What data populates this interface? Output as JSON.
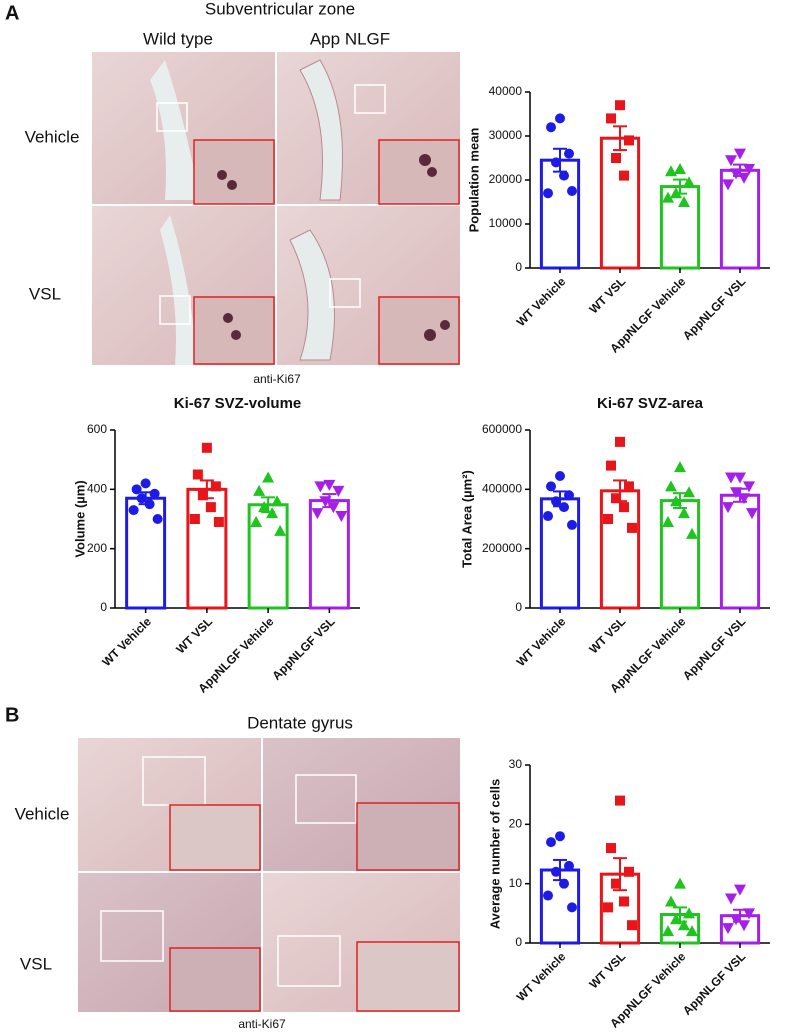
{
  "figure": {
    "panel_a": "A",
    "svz_title": "Subventricular zone",
    "col_wt": "Wild type",
    "col_app": "App NLGF",
    "row_vehicle_a": "Vehicle",
    "row_vsl_a": "VSL",
    "caption_a": "anti-Ki67",
    "panel_b": "B",
    "dg_title": "Dentate gyrus",
    "row_vehicle_b": "Vehicle",
    "row_vsl_b": "VSL",
    "caption_b": "anti-Ki67"
  },
  "chart_data": [
    {
      "type": "bar",
      "ylabel": "Population mean",
      "categories": [
        "WT Vehicle",
        "WT VSL",
        "AppNLGF Vehicle",
        "AppNLGF VSL"
      ],
      "colors": [
        "#1c1ce6",
        "#e8151b",
        "#1fc41f",
        "#a51fe8"
      ],
      "markers": [
        "circle",
        "square",
        "triangle-up",
        "triangle-down"
      ],
      "values": [
        24500,
        29500,
        18500,
        22200
      ],
      "errors": [
        2600,
        2700,
        1600,
        1300
      ],
      "points": [
        [
          34000,
          32000,
          26000,
          24000,
          21000,
          17000,
          17500
        ],
        [
          37000,
          34000,
          29000,
          25000,
          21000
        ],
        [
          22500,
          22000,
          19500,
          17000,
          15000,
          16000
        ],
        [
          26000,
          24500,
          22500,
          21500,
          20500,
          19000
        ]
      ],
      "ylim": [
        0,
        40000
      ],
      "yticks": [
        0,
        10000,
        20000,
        30000,
        40000
      ]
    },
    {
      "type": "bar",
      "title": "Ki-67 SVZ-volume",
      "ylabel": "Volume (µm)",
      "categories": [
        "WT Vehicle",
        "WT VSL",
        "AppNLGF Vehicle",
        "AppNLGF VSL"
      ],
      "colors": [
        "#1c1ce6",
        "#e8151b",
        "#1fc41f",
        "#a51fe8"
      ],
      "markers": [
        "circle",
        "square",
        "triangle-up",
        "triangle-down"
      ],
      "values": [
        370,
        400,
        348,
        362
      ],
      "errors": [
        20,
        30,
        25,
        22
      ],
      "points": [
        [
          420,
          400,
          385,
          370,
          350,
          330,
          300
        ],
        [
          540,
          450,
          410,
          380,
          340,
          300,
          290
        ],
        [
          440,
          395,
          360,
          340,
          320,
          290,
          260
        ],
        [
          415,
          410,
          395,
          360,
          340,
          320,
          310
        ]
      ],
      "ylim": [
        0,
        600
      ],
      "yticks": [
        0,
        200,
        400,
        600
      ]
    },
    {
      "type": "bar",
      "title": "Ki-67 SVZ-area",
      "ylabel": "Total Area (µm²)",
      "categories": [
        "WT Vehicle",
        "WT VSL",
        "AppNLGF Vehicle",
        "AppNLGF VSL"
      ],
      "colors": [
        "#1c1ce6",
        "#e8151b",
        "#1fc41f",
        "#a51fe8"
      ],
      "markers": [
        "circle",
        "square",
        "triangle-up",
        "triangle-down"
      ],
      "values": [
        368000,
        395000,
        362000,
        380000
      ],
      "errors": [
        25000,
        35000,
        25000,
        22000
      ],
      "points": [
        [
          445000,
          410000,
          380000,
          360000,
          340000,
          310000,
          280000
        ],
        [
          560000,
          480000,
          410000,
          370000,
          340000,
          300000,
          270000
        ],
        [
          475000,
          410000,
          390000,
          360000,
          320000,
          290000,
          250000
        ],
        [
          440000,
          440000,
          410000,
          390000,
          370000,
          340000,
          320000
        ]
      ],
      "ylim": [
        0,
        600000
      ],
      "yticks": [
        0,
        200000,
        400000,
        600000
      ]
    },
    {
      "type": "bar",
      "ylabel": "Average number of cells",
      "categories": [
        "WT Vehicle",
        "WT VSL",
        "AppNLGF Vehicle",
        "AppNLGF VSL"
      ],
      "colors": [
        "#1c1ce6",
        "#e8151b",
        "#1fc41f",
        "#a51fe8"
      ],
      "markers": [
        "circle",
        "square",
        "triangle-up",
        "triangle-down"
      ],
      "values": [
        12.3,
        11.6,
        4.8,
        4.6
      ],
      "errors": [
        1.7,
        2.7,
        1.2,
        1.0
      ],
      "points": [
        [
          18,
          17,
          13,
          12,
          10,
          8,
          6
        ],
        [
          24,
          16,
          12,
          10,
          7,
          6,
          3
        ],
        [
          10,
          7,
          5,
          4,
          3,
          2,
          2
        ],
        [
          9,
          7.5,
          5,
          4,
          3,
          2.5
        ]
      ],
      "ylim": [
        0,
        30
      ],
      "yticks": [
        0,
        10,
        20,
        30
      ]
    }
  ]
}
